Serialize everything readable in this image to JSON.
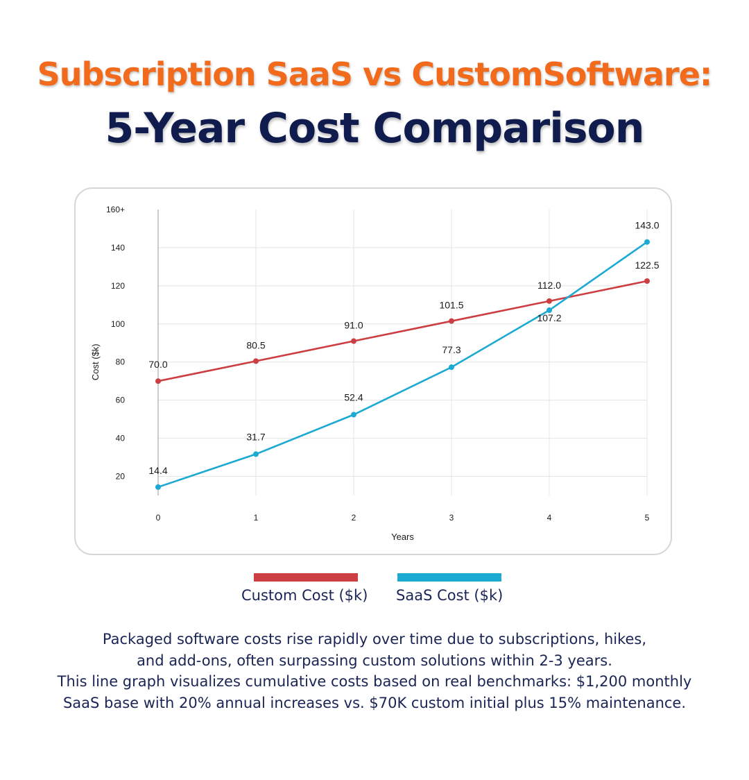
{
  "header": {
    "title_line1": "Subscription SaaS vs CustomSoftware:",
    "title_line2": "5-Year Cost Comparison"
  },
  "chart_data": {
    "type": "line",
    "x": [
      0,
      1,
      2,
      3,
      4,
      5
    ],
    "xlabel": "Years",
    "ylabel": "Cost ($k)",
    "ylim": [
      10,
      160
    ],
    "yticks": [
      20,
      40,
      60,
      80,
      100,
      120,
      140
    ],
    "ytick_top_label": "160+",
    "grid": true,
    "series": [
      {
        "name": "Custom Cost ($k)",
        "color": "#cc3e42",
        "values": [
          70.0,
          80.5,
          91.0,
          101.5,
          112.0,
          122.5
        ],
        "labels": [
          "70.0",
          "80.5",
          "91.0",
          "101.5",
          "112.0",
          "122.5"
        ]
      },
      {
        "name": "SaaS Cost ($k)",
        "color": "#1ca9d2",
        "values": [
          14.4,
          31.7,
          52.4,
          77.3,
          107.2,
          143.0
        ],
        "labels": [
          "14.4",
          "31.7",
          "52.4",
          "77.3",
          "107.2",
          "143.0"
        ]
      }
    ],
    "legend_position": "bottom"
  },
  "caption": {
    "line1": "Packaged software costs rise rapidly over time due to subscriptions, hikes,",
    "line2": "and add-ons, often surpassing custom solutions within 2-3 years.",
    "line3": "This line graph visualizes cumulative costs based on real benchmarks: $1,200 monthly",
    "line4": "SaaS base with 20% annual increases vs. $70K custom initial plus 15% maintenance."
  }
}
